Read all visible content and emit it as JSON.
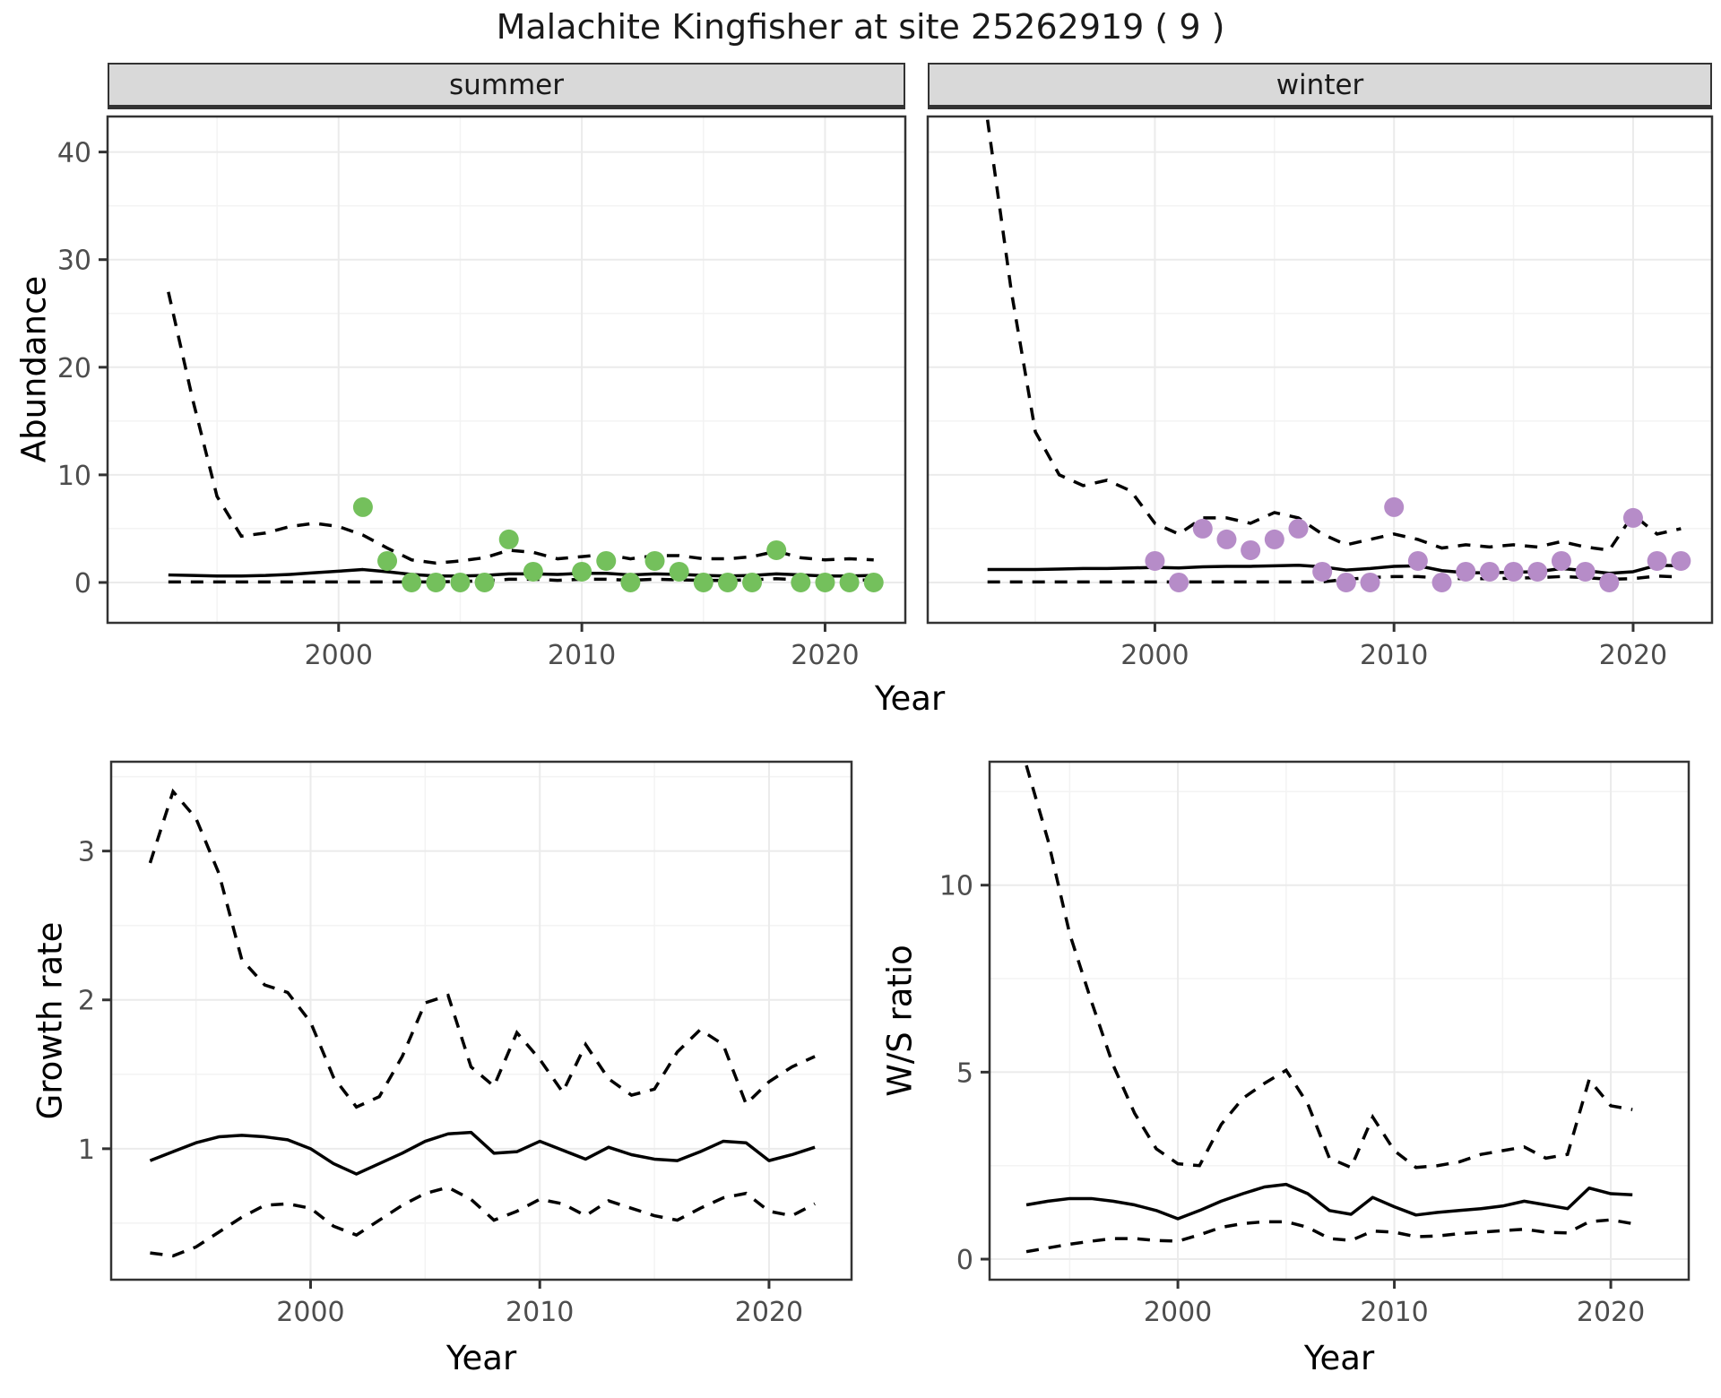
{
  "title": "Malachite Kingfisher at site 25262919 ( 9 )",
  "facets": {
    "summer": "summer",
    "winter": "winter"
  },
  "axis_labels": {
    "abundance": "Abundance",
    "year": "Year",
    "growth": "Growth rate",
    "ws": "W/S ratio"
  },
  "colors": {
    "summer_point": "#74C05C",
    "winter_point": "#B68CC8",
    "line": "#000000",
    "panel_border": "#333333",
    "grid_major": "#EBEBEB",
    "grid_minor": "#F3F3F3",
    "strip_bg": "#D9D9D9",
    "tick_label": "#4D4D4D",
    "tick_mark": "#333333"
  },
  "chart_data": [
    {
      "id": "summer_abundance",
      "type": "line",
      "facet_label": "summer",
      "xlabel": "Year",
      "ylabel": "Abundance",
      "xlim": [
        1990.5,
        2023.3
      ],
      "ylim": [
        -3.75,
        43.3
      ],
      "xticks": [
        2000,
        2010,
        2020
      ],
      "xminor": [
        1995,
        2005,
        2015
      ],
      "yticks": [
        0,
        10,
        20,
        30,
        40
      ],
      "yminor": [
        5,
        15,
        25,
        35
      ],
      "grid": true,
      "legend": "none",
      "years": [
        1993,
        1994,
        1995,
        1996,
        1997,
        1998,
        1999,
        2000,
        2001,
        2002,
        2003,
        2004,
        2005,
        2006,
        2007,
        2008,
        2009,
        2010,
        2011,
        2012,
        2013,
        2014,
        2015,
        2016,
        2017,
        2018,
        2019,
        2020,
        2021,
        2022
      ],
      "mean": [
        0.7,
        0.65,
        0.6,
        0.6,
        0.65,
        0.75,
        0.9,
        1.05,
        1.2,
        1.0,
        0.75,
        0.6,
        0.6,
        0.65,
        0.8,
        0.8,
        0.75,
        0.85,
        0.85,
        0.7,
        0.8,
        0.75,
        0.65,
        0.6,
        0.65,
        0.8,
        0.7,
        0.6,
        0.6,
        0.65
      ],
      "upper": [
        27,
        17,
        8,
        4.3,
        4.6,
        5.2,
        5.5,
        5.2,
        4.4,
        3.2,
        2.1,
        1.8,
        2.0,
        2.3,
        3.0,
        2.8,
        2.2,
        2.4,
        2.6,
        2.2,
        2.5,
        2.5,
        2.2,
        2.2,
        2.4,
        2.9,
        2.3,
        2.1,
        2.2,
        2.1
      ],
      "lower": [
        0.05,
        0.05,
        0.05,
        0.05,
        0.05,
        0.05,
        0.05,
        0.05,
        0.05,
        0.05,
        0.05,
        0.05,
        0.1,
        0.15,
        0.3,
        0.3,
        0.2,
        0.3,
        0.3,
        0.2,
        0.3,
        0.25,
        0.2,
        0.2,
        0.25,
        0.35,
        0.25,
        0.2,
        0.2,
        0.25
      ],
      "points": {
        "x": [
          2001,
          2002,
          2003,
          2004,
          2005,
          2006,
          2007,
          2008,
          2010,
          2011,
          2012,
          2013,
          2014,
          2015,
          2016,
          2017,
          2018,
          2019,
          2020,
          2021,
          2022
        ],
        "y": [
          7,
          2,
          0,
          0,
          0,
          0,
          4,
          1,
          1,
          2,
          0,
          2,
          1,
          0,
          0,
          0,
          3,
          0,
          0,
          0,
          0
        ]
      },
      "point_color": "#74C05C"
    },
    {
      "id": "winter_abundance",
      "type": "line",
      "facet_label": "winter",
      "xlabel": "Year",
      "ylabel": "Abundance",
      "xlim": [
        1990.5,
        2023.3
      ],
      "ylim": [
        -3.75,
        43.3
      ],
      "xticks": [
        2000,
        2010,
        2020
      ],
      "xminor": [
        1995,
        2005,
        2015
      ],
      "yticks": [
        0,
        10,
        20,
        30,
        40
      ],
      "yminor": [
        5,
        15,
        25,
        35
      ],
      "grid": true,
      "legend": "none",
      "years": [
        1993,
        1994,
        1995,
        1996,
        1997,
        1998,
        1999,
        2000,
        2001,
        2002,
        2003,
        2004,
        2005,
        2006,
        2007,
        2008,
        2009,
        2010,
        2011,
        2012,
        2013,
        2014,
        2015,
        2016,
        2017,
        2018,
        2019,
        2020,
        2021,
        2022
      ],
      "mean": [
        1.2,
        1.2,
        1.2,
        1.25,
        1.3,
        1.3,
        1.35,
        1.4,
        1.35,
        1.45,
        1.5,
        1.5,
        1.55,
        1.6,
        1.45,
        1.15,
        1.3,
        1.5,
        1.55,
        1.1,
        0.9,
        0.9,
        0.95,
        1.0,
        1.3,
        1.1,
        0.85,
        1.0,
        1.6,
        1.55
      ],
      "upper": [
        43,
        27,
        14,
        10,
        9,
        9.5,
        8.5,
        5.5,
        4.5,
        6,
        6,
        5.5,
        6.5,
        6,
        4.5,
        3.5,
        4,
        4.5,
        4,
        3.2,
        3.5,
        3.3,
        3.5,
        3.3,
        3.8,
        3.3,
        3,
        6.3,
        4.5,
        5
      ],
      "lower": [
        0.05,
        0.05,
        0.05,
        0.05,
        0.05,
        0.05,
        0.05,
        0.05,
        0.05,
        0.05,
        0.05,
        0.05,
        0.05,
        0.05,
        0.05,
        0.3,
        0.45,
        0.55,
        0.55,
        0.4,
        0.35,
        0.35,
        0.4,
        0.45,
        0.55,
        0.45,
        0.3,
        0.35,
        0.6,
        0.5
      ],
      "points": {
        "x": [
          2000,
          2001,
          2002,
          2003,
          2004,
          2005,
          2006,
          2007,
          2008,
          2009,
          2010,
          2011,
          2012,
          2013,
          2014,
          2015,
          2016,
          2017,
          2018,
          2019,
          2020,
          2021,
          2022
        ],
        "y": [
          2,
          0,
          5,
          4,
          3,
          4,
          5,
          1,
          0,
          0,
          7,
          2,
          0,
          1,
          1,
          1,
          1,
          2,
          1,
          0,
          6,
          2,
          2
        ]
      },
      "point_color": "#B68CC8"
    },
    {
      "id": "growth_rate",
      "type": "line",
      "facet_label": "",
      "xlabel": "Year",
      "ylabel": "Growth rate",
      "xlim": [
        1991.3,
        2023.6
      ],
      "ylim": [
        0.12,
        3.6
      ],
      "xticks": [
        2000,
        2010,
        2020
      ],
      "xminor": [
        1995,
        2005,
        2015
      ],
      "yticks": [
        1,
        2,
        3
      ],
      "yminor": [
        0.5,
        1.5,
        2.5,
        3.5
      ],
      "grid": true,
      "legend": "none",
      "years": [
        1993,
        1994,
        1995,
        1996,
        1997,
        1998,
        1999,
        2000,
        2001,
        2002,
        2003,
        2004,
        2005,
        2006,
        2007,
        2008,
        2009,
        2010,
        2011,
        2012,
        2013,
        2014,
        2015,
        2016,
        2017,
        2018,
        2019,
        2020,
        2021,
        2022
      ],
      "mean": [
        0.92,
        0.98,
        1.04,
        1.08,
        1.09,
        1.08,
        1.06,
        1.0,
        0.9,
        0.83,
        0.9,
        0.97,
        1.05,
        1.1,
        1.11,
        0.97,
        0.98,
        1.05,
        0.99,
        0.93,
        1.01,
        0.96,
        0.93,
        0.92,
        0.98,
        1.05,
        1.04,
        0.92,
        0.96,
        1.01
      ],
      "upper": [
        2.92,
        3.4,
        3.22,
        2.85,
        2.27,
        2.1,
        2.05,
        1.85,
        1.48,
        1.28,
        1.35,
        1.62,
        1.98,
        2.03,
        1.55,
        1.42,
        1.78,
        1.6,
        1.38,
        1.7,
        1.47,
        1.36,
        1.4,
        1.65,
        1.8,
        1.7,
        1.3,
        1.45,
        1.55,
        1.62
      ],
      "lower": [
        0.3,
        0.28,
        0.34,
        0.44,
        0.54,
        0.62,
        0.63,
        0.6,
        0.48,
        0.42,
        0.52,
        0.62,
        0.7,
        0.74,
        0.66,
        0.52,
        0.58,
        0.66,
        0.63,
        0.55,
        0.65,
        0.6,
        0.55,
        0.52,
        0.6,
        0.67,
        0.7,
        0.58,
        0.55,
        0.63
      ],
      "points": {
        "x": [],
        "y": []
      },
      "point_color": "#000000"
    },
    {
      "id": "ws_ratio",
      "type": "line",
      "facet_label": "",
      "xlabel": "Year",
      "ylabel": "W/S ratio",
      "xlim": [
        1991.3,
        2023.6
      ],
      "ylim": [
        -0.55,
        13.3
      ],
      "xticks": [
        2000,
        2010,
        2020
      ],
      "xminor": [
        1995,
        2005,
        2015
      ],
      "yticks": [
        0,
        5,
        10
      ],
      "yminor": [
        2.5,
        7.5,
        12.5
      ],
      "grid": true,
      "legend": "none",
      "years": [
        1993,
        1994,
        1995,
        1996,
        1997,
        1998,
        1999,
        2000,
        2001,
        2002,
        2003,
        2004,
        2005,
        2006,
        2007,
        2008,
        2009,
        2010,
        2011,
        2012,
        2013,
        2014,
        2015,
        2016,
        2017,
        2018,
        2019,
        2020,
        2021
      ],
      "mean": [
        1.45,
        1.55,
        1.62,
        1.62,
        1.55,
        1.45,
        1.3,
        1.08,
        1.3,
        1.55,
        1.75,
        1.93,
        2.0,
        1.75,
        1.3,
        1.2,
        1.65,
        1.4,
        1.18,
        1.25,
        1.3,
        1.35,
        1.42,
        1.55,
        1.45,
        1.35,
        1.9,
        1.75,
        1.72
      ],
      "upper": [
        13.2,
        11.2,
        8.7,
        6.9,
        5.2,
        3.9,
        2.95,
        2.55,
        2.5,
        3.6,
        4.3,
        4.7,
        5.05,
        4.15,
        2.7,
        2.45,
        3.8,
        2.9,
        2.45,
        2.5,
        2.6,
        2.8,
        2.9,
        3.0,
        2.7,
        2.8,
        4.8,
        4.1,
        4.0
      ],
      "lower": [
        0.2,
        0.3,
        0.4,
        0.48,
        0.55,
        0.55,
        0.5,
        0.48,
        0.65,
        0.85,
        0.95,
        1.0,
        1.0,
        0.85,
        0.55,
        0.5,
        0.75,
        0.72,
        0.6,
        0.62,
        0.68,
        0.72,
        0.76,
        0.8,
        0.72,
        0.7,
        1.0,
        1.05,
        0.95
      ],
      "points": {
        "x": [],
        "y": []
      },
      "point_color": "#000000"
    }
  ]
}
